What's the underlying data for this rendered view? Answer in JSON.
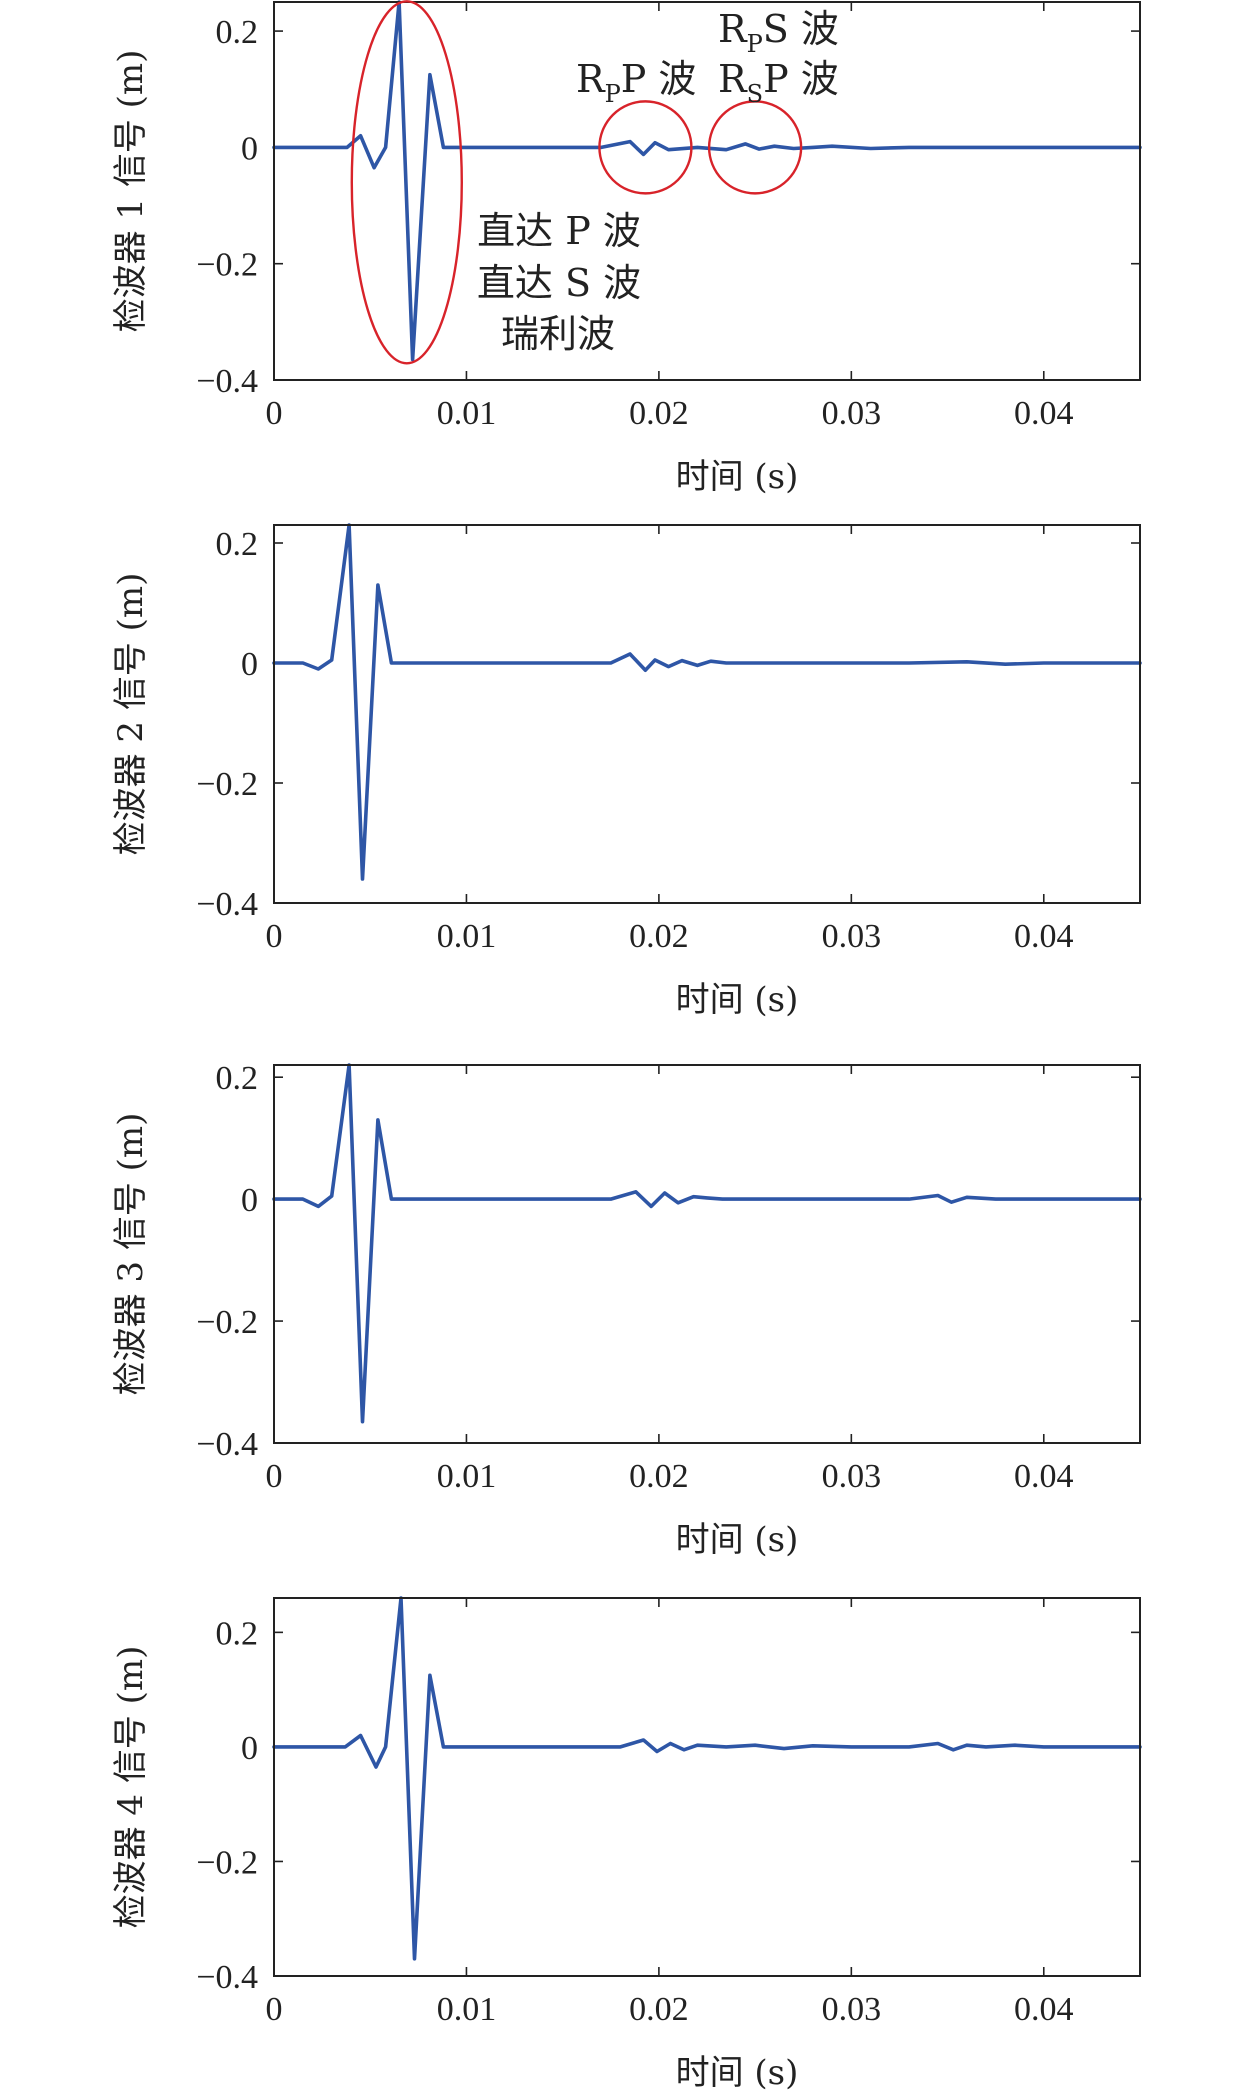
{
  "chart_data": [
    {
      "type": "line",
      "ylabel": "检波器 1 信号 (m)",
      "xlabel": "时间 (s)",
      "xlim": [
        0,
        0.045
      ],
      "ylim": [
        -0.4,
        0.25
      ],
      "xticks": [
        0,
        0.01,
        0.02,
        0.03,
        0.04
      ],
      "xtick_labels": [
        "0",
        "0.01",
        "0.02",
        "0.03",
        "0.04"
      ],
      "yticks": [
        -0.4,
        -0.2,
        0,
        0.2
      ],
      "ytick_labels": [
        "−0.4",
        "−0.2",
        "0",
        "0.2"
      ],
      "grid": false,
      "series": [
        {
          "color": "#2e56a6",
          "x": [
            0,
            0.0038,
            0.0045,
            0.0052,
            0.0058,
            0.0065,
            0.0072,
            0.0081,
            0.0088,
            0.0095,
            0.012,
            0.017,
            0.0185,
            0.0192,
            0.0198,
            0.0205,
            0.022,
            0.0235,
            0.0245,
            0.0252,
            0.026,
            0.027,
            0.028,
            0.029,
            0.031,
            0.033,
            0.035,
            0.037,
            0.039,
            0.041,
            0.043,
            0.045
          ],
          "y": [
            0,
            0,
            0.02,
            -0.035,
            0.0,
            0.25,
            -0.365,
            0.125,
            0.0,
            0.0,
            0.0,
            0.0,
            0.01,
            -0.012,
            0.008,
            -0.004,
            0.0,
            -0.004,
            0.006,
            -0.003,
            0.002,
            -0.002,
            0.0,
            0.002,
            -0.002,
            0.0,
            0.0,
            0.0,
            0.0,
            0.0,
            0.0,
            0.0
          ]
        }
      ],
      "annotations": [
        {
          "lines": [
            "直达 P 波",
            "直达 S 波",
            "瑞利波"
          ]
        },
        {
          "base": "R",
          "sub": "P",
          "tail": "P 波"
        },
        {
          "base": "R",
          "sub": "P",
          "tail": "S 波"
        },
        {
          "base": "R",
          "sub": "S",
          "tail": "P 波"
        }
      ],
      "highlight_color": "#d8232a"
    },
    {
      "type": "line",
      "ylabel": "检波器 2 信号 (m)",
      "xlabel": "时间 (s)",
      "xlim": [
        0,
        0.045
      ],
      "ylim": [
        -0.4,
        0.23
      ],
      "xticks": [
        0,
        0.01,
        0.02,
        0.03,
        0.04
      ],
      "xtick_labels": [
        "0",
        "0.01",
        "0.02",
        "0.03",
        "0.04"
      ],
      "yticks": [
        -0.4,
        -0.2,
        0,
        0.2
      ],
      "ytick_labels": [
        "−0.4",
        "−0.2",
        "0",
        "0.2"
      ],
      "grid": false,
      "series": [
        {
          "color": "#2e56a6",
          "x": [
            0,
            0.0015,
            0.0023,
            0.003,
            0.0039,
            0.0046,
            0.0054,
            0.0061,
            0.007,
            0.01,
            0.0175,
            0.0185,
            0.0193,
            0.0198,
            0.0205,
            0.0212,
            0.022,
            0.0227,
            0.0235,
            0.026,
            0.03,
            0.033,
            0.036,
            0.038,
            0.04,
            0.042,
            0.045
          ],
          "y": [
            0,
            0,
            -0.01,
            0.005,
            0.23,
            -0.36,
            0.13,
            0.0,
            0.0,
            0.0,
            0.0,
            0.015,
            -0.012,
            0.005,
            -0.006,
            0.004,
            -0.004,
            0.003,
            0.0,
            0.0,
            0.0,
            0.0,
            0.002,
            -0.002,
            0.0,
            0.0,
            0.0
          ]
        }
      ]
    },
    {
      "type": "line",
      "ylabel": "检波器 3 信号 (m)",
      "xlabel": "时间 (s)",
      "xlim": [
        0,
        0.045
      ],
      "ylim": [
        -0.4,
        0.22
      ],
      "xticks": [
        0,
        0.01,
        0.02,
        0.03,
        0.04
      ],
      "xtick_labels": [
        "0",
        "0.01",
        "0.02",
        "0.03",
        "0.04"
      ],
      "yticks": [
        -0.4,
        -0.2,
        0,
        0.2
      ],
      "ytick_labels": [
        "−0.4",
        "−0.2",
        "0",
        "0.2"
      ],
      "grid": false,
      "series": [
        {
          "color": "#2e56a6",
          "x": [
            0,
            0.0015,
            0.0023,
            0.003,
            0.0039,
            0.0046,
            0.0054,
            0.0061,
            0.007,
            0.01,
            0.0175,
            0.0188,
            0.0196,
            0.0203,
            0.021,
            0.0218,
            0.0225,
            0.0233,
            0.026,
            0.03,
            0.033,
            0.0345,
            0.0352,
            0.036,
            0.0375,
            0.04,
            0.045
          ],
          "y": [
            0,
            0,
            -0.012,
            0.005,
            0.22,
            -0.365,
            0.13,
            0.0,
            0.0,
            0.0,
            0.0,
            0.012,
            -0.012,
            0.01,
            -0.006,
            0.004,
            0.002,
            0.0,
            0.0,
            0.0,
            0.0,
            0.006,
            -0.005,
            0.003,
            0.0,
            0.0,
            0.0
          ]
        }
      ]
    },
    {
      "type": "line",
      "ylabel": "检波器 4 信号 (m)",
      "xlabel": "时间 (s)",
      "xlim": [
        0,
        0.045
      ],
      "ylim": [
        -0.4,
        0.26
      ],
      "xticks": [
        0,
        0.01,
        0.02,
        0.03,
        0.04
      ],
      "xtick_labels": [
        "0",
        "0.01",
        "0.02",
        "0.03",
        "0.04"
      ],
      "yticks": [
        -0.4,
        -0.2,
        0,
        0.2
      ],
      "ytick_labels": [
        "−0.4",
        "−0.2",
        "0",
        "0.2"
      ],
      "grid": false,
      "series": [
        {
          "color": "#2e56a6",
          "x": [
            0,
            0.0037,
            0.0045,
            0.0053,
            0.0058,
            0.0066,
            0.0073,
            0.0081,
            0.0088,
            0.0095,
            0.012,
            0.018,
            0.0192,
            0.0199,
            0.0206,
            0.0213,
            0.022,
            0.0235,
            0.025,
            0.0265,
            0.028,
            0.03,
            0.033,
            0.0345,
            0.0353,
            0.036,
            0.037,
            0.0385,
            0.04,
            0.042,
            0.045
          ],
          "y": [
            0,
            0,
            0.02,
            -0.035,
            0.0,
            0.26,
            -0.37,
            0.125,
            0.0,
            0.0,
            0.0,
            0.0,
            0.012,
            -0.008,
            0.006,
            -0.005,
            0.003,
            0.0,
            0.003,
            -0.003,
            0.002,
            0.0,
            0.0,
            0.006,
            -0.005,
            0.003,
            0.0,
            0.003,
            0.0,
            0.0,
            0.0
          ]
        }
      ]
    }
  ]
}
